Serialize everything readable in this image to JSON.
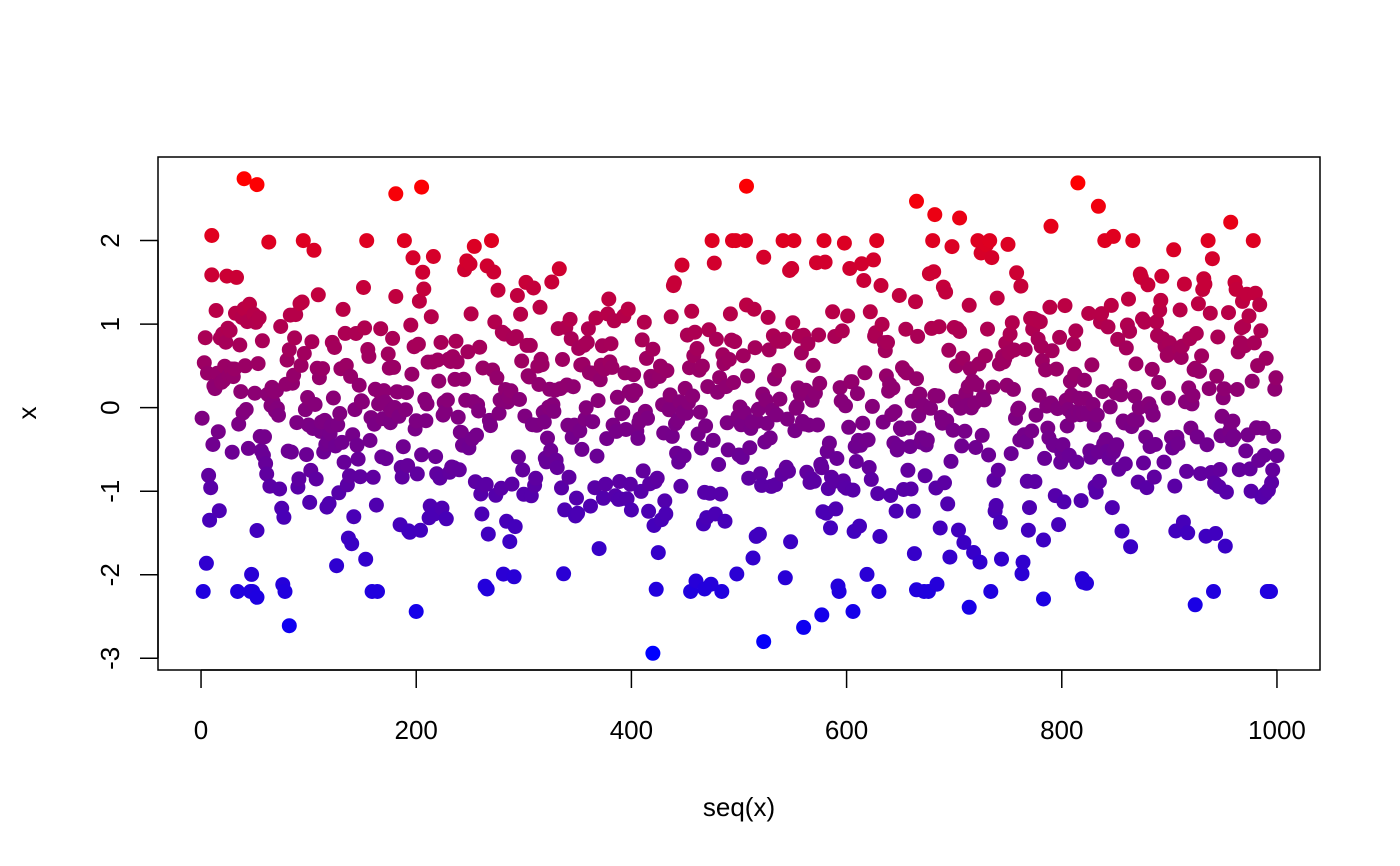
{
  "chart_data": {
    "type": "scatter",
    "title": "",
    "xlabel": "seq(x)",
    "ylabel": "x",
    "xlim": [
      -40,
      1040
    ],
    "ylim": [
      -3.14,
      3.0
    ],
    "xticks": [
      0,
      200,
      400,
      600,
      800,
      1000
    ],
    "xtick_labels": [
      "0",
      "200",
      "400",
      "600",
      "800",
      "1000"
    ],
    "yticks": [
      -3,
      -2,
      -1,
      0,
      1,
      2
    ],
    "ytick_labels": [
      "-3",
      "-2",
      "-1",
      "0",
      "1",
      "2"
    ],
    "grid": false,
    "legend": "none",
    "point_count": 1000,
    "color_scale": {
      "low": "#0000FF",
      "high": "#FF0000",
      "mapping": "blue to red by x value"
    },
    "y_summary": {
      "min": -2.94,
      "max": 2.74
    },
    "annotated_extremes": [
      {
        "x": 40,
        "y": 2.74
      },
      {
        "x": 52,
        "y": 2.67
      },
      {
        "x": 181,
        "y": 2.56
      },
      {
        "x": 205,
        "y": 2.64
      },
      {
        "x": 507,
        "y": 2.65
      },
      {
        "x": 665,
        "y": 2.47
      },
      {
        "x": 682,
        "y": 2.31
      },
      {
        "x": 705,
        "y": 2.27
      },
      {
        "x": 815,
        "y": 2.69
      },
      {
        "x": 834,
        "y": 2.41
      },
      {
        "x": 957,
        "y": 2.22
      },
      {
        "x": 10,
        "y": 2.06
      },
      {
        "x": 790,
        "y": 2.17
      },
      {
        "x": 848,
        "y": 2.05
      },
      {
        "x": 598,
        "y": 1.97
      },
      {
        "x": 420,
        "y": -2.94
      },
      {
        "x": 523,
        "y": -2.8
      },
      {
        "x": 560,
        "y": -2.63
      },
      {
        "x": 82,
        "y": -2.61
      },
      {
        "x": 200,
        "y": -2.44
      },
      {
        "x": 606,
        "y": -2.44
      },
      {
        "x": 577,
        "y": -2.48
      },
      {
        "x": 714,
        "y": -2.39
      },
      {
        "x": 924,
        "y": -2.36
      },
      {
        "x": 783,
        "y": -2.29
      },
      {
        "x": 52,
        "y": -2.27
      },
      {
        "x": 468,
        "y": -2.17
      },
      {
        "x": 665,
        "y": -2.18
      },
      {
        "x": 266,
        "y": -2.17
      },
      {
        "x": 820,
        "y": -2.09
      }
    ]
  }
}
